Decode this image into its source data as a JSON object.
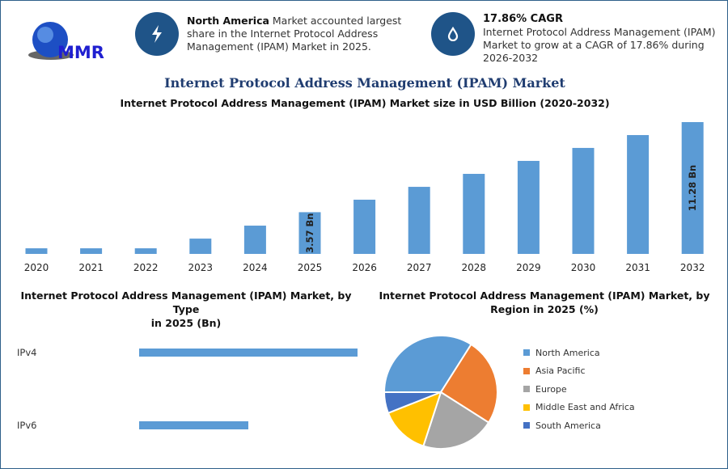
{
  "logo": {
    "text": "MMR"
  },
  "info1": {
    "bold": "North America",
    "text": " Market accounted largest share in the Internet Protocol Address Management (IPAM) Market in 2025.",
    "icon": "lightning-icon"
  },
  "info2": {
    "bold": "17.86% CAGR",
    "text": "Internet Protocol Address Management (IPAM) Market to grow at a CAGR of 17.86% during 2026-2032",
    "icon": "growth-drop-icon"
  },
  "title": "Internet Protocol Address Management (IPAM) Market",
  "colors": {
    "bar": "#5b9bd5",
    "title": "#1f3c70",
    "icon_bg": "#1f5488"
  },
  "chart_data": [
    {
      "type": "bar",
      "title": "Internet Protocol Address Management (IPAM) Market size in USD Billion (2020-2032)",
      "categories": [
        "2020",
        "2021",
        "2022",
        "2023",
        "2024",
        "2025",
        "2026",
        "2027",
        "2028",
        "2029",
        "2030",
        "2031",
        "2032"
      ],
      "values": [
        0.48,
        0.48,
        0.48,
        1.31,
        2.42,
        3.57,
        4.64,
        5.74,
        6.85,
        7.96,
        9.07,
        10.17,
        11.28
      ],
      "data_labels": {
        "2025": "3.57 Bn",
        "2032": "11.28 Bn"
      },
      "ylim": [
        0,
        11.28
      ]
    },
    {
      "type": "bar",
      "orientation": "horizontal",
      "title_line1": "Internet Protocol Address Management (IPAM) Market, by Type",
      "title_line2": "in 2025 (Bn)",
      "categories": [
        "IPv4",
        "IPv6"
      ],
      "values": [
        2.38,
        1.19
      ]
    },
    {
      "type": "pie",
      "title_line1": "Internet Protocol Address Management (IPAM) Market, by",
      "title_line2": "Region in 2025 (%)",
      "slices": [
        {
          "name": "North America",
          "value": 34,
          "color": "#5b9bd5"
        },
        {
          "name": "Asia Pacific",
          "value": 25,
          "color": "#ed7d31"
        },
        {
          "name": "Europe",
          "value": 21,
          "color": "#a5a5a5"
        },
        {
          "name": "Middle East and Africa",
          "value": 14,
          "color": "#ffc000"
        },
        {
          "name": "South America",
          "value": 6,
          "color": "#4472c4"
        }
      ]
    }
  ]
}
